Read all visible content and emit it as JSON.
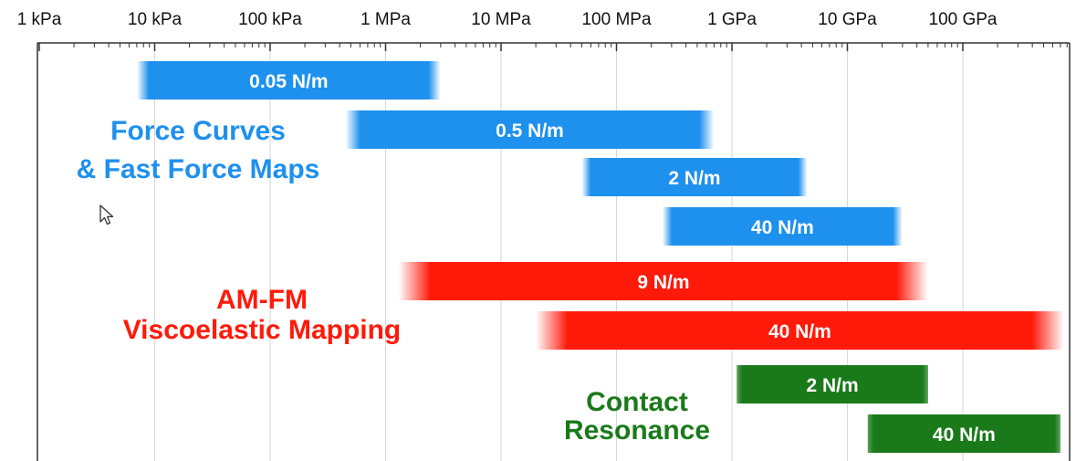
{
  "chart_data": {
    "type": "bar",
    "orientation": "horizontal-range",
    "x_scale": "log",
    "x_ticks": [
      "1 kPa",
      "10 kPa",
      "100 kPa",
      "1 MPa",
      "10 MPa",
      "100 MPa",
      "1 GPa",
      "10 GPa",
      "100 GPa"
    ],
    "xlim_kpa": [
      1,
      1000000000
    ],
    "grid": "vertical gridlines at decades",
    "groups": [
      {
        "name_lines": [
          "Force Curves",
          "& Fast Force Maps"
        ],
        "color": "#1e90ee",
        "bars": [
          {
            "label": "0.05 N/m",
            "min_kpa": 7,
            "max_kpa": 3000
          },
          {
            "label": "0.5 N/m",
            "min_kpa": 450,
            "max_kpa": 700000
          },
          {
            "label": "2 N/m",
            "min_kpa": 50000,
            "max_kpa": 4500000
          },
          {
            "label": "40 N/m",
            "min_kpa": 250000,
            "max_kpa": 30000000
          }
        ]
      },
      {
        "name_lines": [
          "AM-FM",
          "Viscoelastic Mapping"
        ],
        "color": "#ff1a0a",
        "bars": [
          {
            "label": "9 N/m",
            "min_kpa": 1300,
            "max_kpa": 50000000
          },
          {
            "label": "40 N/m",
            "min_kpa": 20000,
            "max_kpa": 750000000
          }
        ]
      },
      {
        "name_lines": [
          "Contact",
          "Resonance"
        ],
        "color": "#1a7a1a",
        "bars": [
          {
            "label": "2 N/m",
            "min_kpa": 1100000,
            "max_kpa": 50000000
          },
          {
            "label": "40 N/m",
            "min_kpa": 15000000,
            "max_kpa": 700000000
          }
        ]
      }
    ]
  },
  "icons": {
    "cursor": "mouse-pointer-icon"
  }
}
